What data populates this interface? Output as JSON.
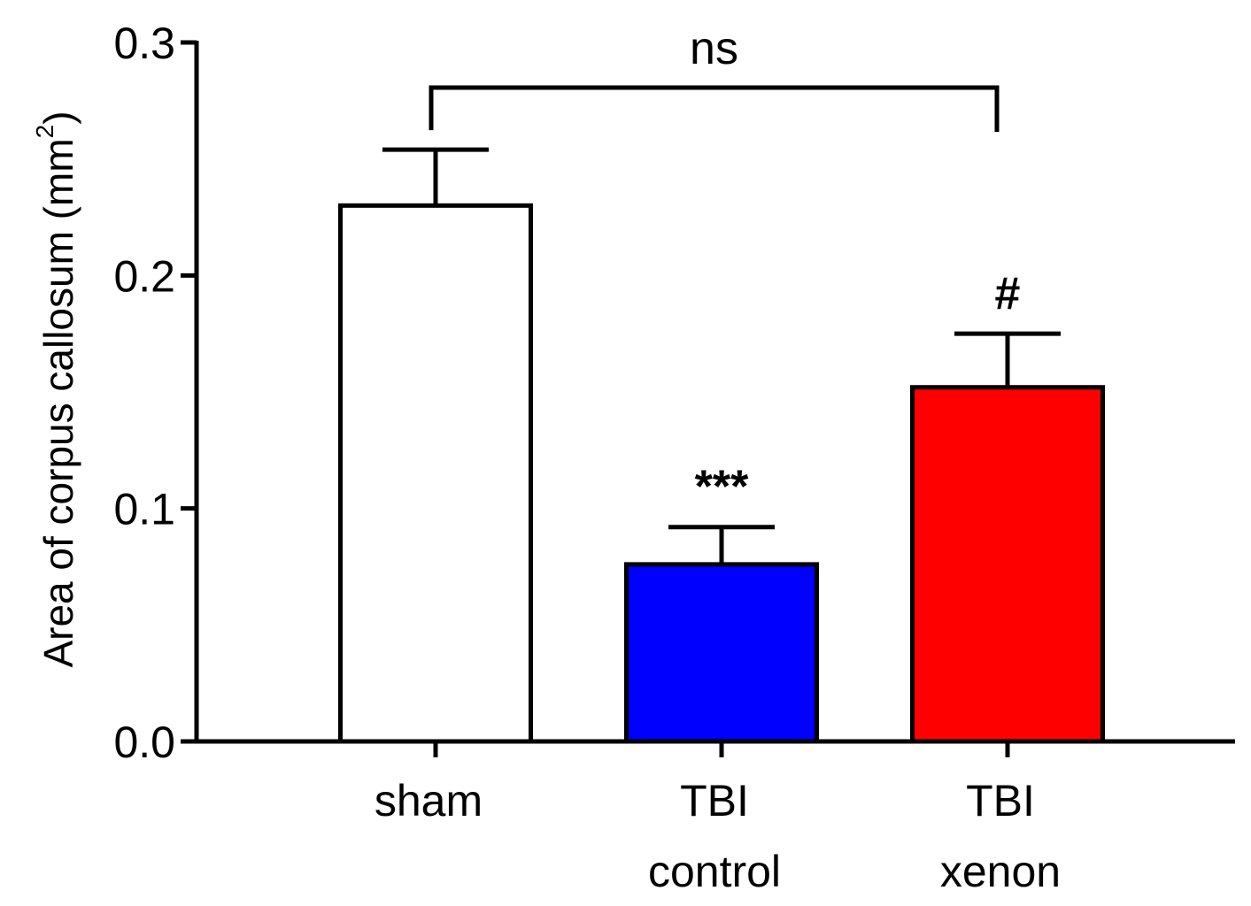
{
  "chart_data": {
    "type": "bar",
    "categories": [
      [
        "sham"
      ],
      [
        "TBI",
        "control"
      ],
      [
        "TBI",
        "xenon"
      ]
    ],
    "values": [
      0.23,
      0.076,
      0.152
    ],
    "errors": [
      0.024,
      0.016,
      0.023
    ],
    "colors": [
      "#ffffff",
      "#0000ff",
      "#ff0000"
    ],
    "annotations": [
      "",
      "***",
      "#"
    ],
    "ylabel": "Area of corpus callosum (mm",
    "ylabel_superscript": "2",
    "ylabel_close": ")",
    "ylim": [
      0,
      0.3
    ],
    "yticks": [
      "0.0",
      "0.1",
      "0.2",
      "0.3"
    ],
    "yticks_values": [
      0,
      0.1,
      0.2,
      0.3
    ],
    "bracket": {
      "from": 0,
      "to": 2,
      "label": "ns"
    },
    "grid": false
  }
}
